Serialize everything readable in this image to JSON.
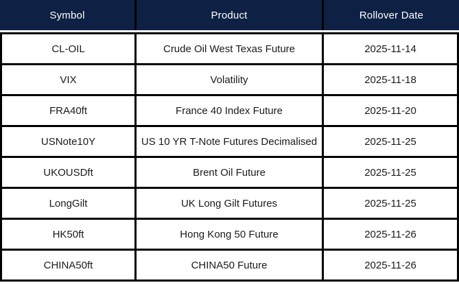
{
  "table": {
    "title": "futures-rollover-table",
    "columns": [
      {
        "label": "Symbol"
      },
      {
        "label": "Product"
      },
      {
        "label": "Rollover Date"
      }
    ],
    "rows": [
      {
        "symbol": "CL-OIL",
        "product": "Crude Oil West Texas Future",
        "rollover_date": "2025-11-14"
      },
      {
        "symbol": "VIX",
        "product": "Volatility",
        "rollover_date": "2025-11-18"
      },
      {
        "symbol": "FRA40ft",
        "product": "France 40 Index Future",
        "rollover_date": "2025-11-20"
      },
      {
        "symbol": "USNote10Y",
        "product": "US 10 YR T-Note Futures Decimalised",
        "rollover_date": "2025-11-25"
      },
      {
        "symbol": "UKOUSDft",
        "product": "Brent Oil Future",
        "rollover_date": "2025-11-25"
      },
      {
        "symbol": "LongGilt",
        "product": "UK Long Gilt Futures",
        "rollover_date": "2025-11-25"
      },
      {
        "symbol": "HK50ft",
        "product": "Hong Kong 50 Future",
        "rollover_date": "2025-11-26"
      },
      {
        "symbol": "CHINA50ft",
        "product": "CHINA50 Future",
        "rollover_date": "2025-11-26"
      }
    ],
    "colors": {
      "header_bg": "#0e2145",
      "header_text": "#ffffff",
      "border": "#000000",
      "row_bg": "#ffffff",
      "body_text": "#1a1a1a"
    }
  }
}
